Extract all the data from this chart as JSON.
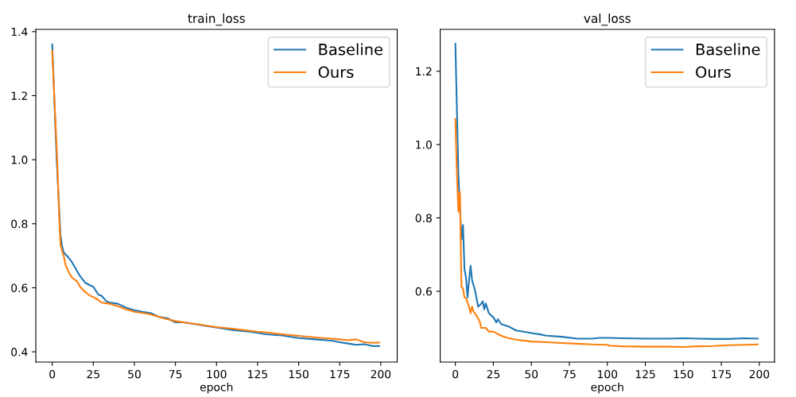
{
  "chart_data": [
    {
      "type": "line",
      "title": "train_loss",
      "xlabel": "epoch",
      "xlim": [
        -10,
        210
      ],
      "xticks": [
        0,
        25,
        50,
        75,
        100,
        125,
        150,
        175,
        200
      ],
      "ylim": [
        0.368,
        1.407
      ],
      "yticks": [
        0.4,
        0.6,
        0.8,
        {
          "value": 1.0,
          "label": "1.0"
        },
        1.2,
        1.4
      ],
      "grid": false,
      "legend": "top right",
      "series": [
        {
          "name": "Baseline",
          "color": "#1f77b4",
          "x": [
            0,
            2.7,
            5,
            6,
            7,
            10,
            12,
            15,
            17,
            20,
            23,
            25,
            28,
            30,
            33,
            35,
            40,
            45,
            50,
            55,
            60,
            65,
            70,
            75,
            80,
            90,
            100,
            110,
            120,
            125,
            130,
            140,
            150,
            160,
            170,
            175,
            180,
            185,
            190,
            195,
            199
          ],
          "values": [
            1.36,
            1.0,
            0.764,
            0.73,
            0.71,
            0.694,
            0.68,
            0.653,
            0.636,
            0.616,
            0.608,
            0.603,
            0.579,
            0.575,
            0.558,
            0.554,
            0.55,
            0.538,
            0.53,
            0.525,
            0.521,
            0.509,
            0.505,
            0.492,
            0.492,
            0.484,
            0.476,
            0.468,
            0.463,
            0.459,
            0.455,
            0.451,
            0.443,
            0.439,
            0.435,
            0.43,
            0.426,
            0.422,
            0.424,
            0.418,
            0.418
          ]
        },
        {
          "name": "Ours",
          "color": "#ff7f0e",
          "x": [
            0,
            3,
            4,
            5,
            6,
            7,
            8,
            10,
            12,
            15,
            17,
            20,
            23,
            25,
            28,
            30,
            35,
            40,
            45,
            50,
            55,
            60,
            65,
            70,
            75,
            80,
            90,
            100,
            110,
            120,
            125,
            130,
            140,
            150,
            160,
            170,
            175,
            180,
            185,
            190,
            195,
            199
          ],
          "values": [
            1.34,
            1.0,
            0.85,
            0.735,
            0.715,
            0.7,
            0.673,
            0.649,
            0.632,
            0.62,
            0.603,
            0.587,
            0.575,
            0.571,
            0.562,
            0.554,
            0.55,
            0.542,
            0.533,
            0.525,
            0.521,
            0.517,
            0.509,
            0.502,
            0.496,
            0.492,
            0.485,
            0.477,
            0.472,
            0.466,
            0.463,
            0.461,
            0.455,
            0.45,
            0.445,
            0.441,
            0.439,
            0.436,
            0.439,
            0.43,
            0.428,
            0.429
          ]
        }
      ]
    },
    {
      "type": "line",
      "title": "val_loss",
      "xlabel": "epoch",
      "xlim": [
        -10,
        210
      ],
      "xticks": [
        0,
        25,
        50,
        75,
        100,
        125,
        150,
        175,
        200
      ],
      "ylim": [
        0.407,
        1.314
      ],
      "yticks": [
        0.6,
        0.8,
        {
          "value": 1.0,
          "label": "1.0"
        },
        1.2
      ],
      "grid": false,
      "legend": "top right",
      "series": [
        {
          "name": "Baseline",
          "color": "#1f77b4",
          "x": [
            0,
            1,
            2,
            4,
            5,
            6,
            7,
            8,
            9,
            10,
            11,
            13,
            15,
            17,
            18,
            19,
            20,
            22,
            25,
            27,
            28,
            30,
            35,
            40,
            45,
            50,
            55,
            60,
            70,
            80,
            90,
            95,
            100,
            110,
            125,
            140,
            150,
            160,
            170,
            180,
            190,
            199
          ],
          "values": [
            1.275,
            1.097,
            0.918,
            0.741,
            0.781,
            0.659,
            0.637,
            0.583,
            0.63,
            0.67,
            0.63,
            0.601,
            0.558,
            0.566,
            0.573,
            0.551,
            0.567,
            0.54,
            0.529,
            0.515,
            0.524,
            0.511,
            0.504,
            0.493,
            0.49,
            0.486,
            0.483,
            0.479,
            0.476,
            0.471,
            0.471,
            0.473,
            0.473,
            0.472,
            0.471,
            0.471,
            0.472,
            0.471,
            0.47,
            0.47,
            0.472,
            0.471
          ]
        },
        {
          "name": "Ours",
          "color": "#ff7f0e",
          "x": [
            0,
            1,
            2,
            3,
            4,
            5,
            6,
            7,
            8,
            9,
            10,
            11,
            12,
            14,
            16,
            17,
            20,
            22,
            25,
            30,
            35,
            40,
            50,
            60,
            70,
            80,
            90,
            100,
            101,
            110,
            125,
            140,
            150,
            160,
            170,
            180,
            190,
            199
          ],
          "values": [
            1.07,
            0.918,
            0.817,
            0.871,
            0.612,
            0.608,
            0.583,
            0.581,
            0.569,
            0.558,
            0.54,
            0.558,
            0.544,
            0.533,
            0.518,
            0.5,
            0.5,
            0.49,
            0.49,
            0.479,
            0.472,
            0.468,
            0.463,
            0.461,
            0.459,
            0.457,
            0.455,
            0.454,
            0.452,
            0.45,
            0.449,
            0.449,
            0.448,
            0.45,
            0.451,
            0.453,
            0.454,
            0.455
          ]
        }
      ]
    }
  ]
}
